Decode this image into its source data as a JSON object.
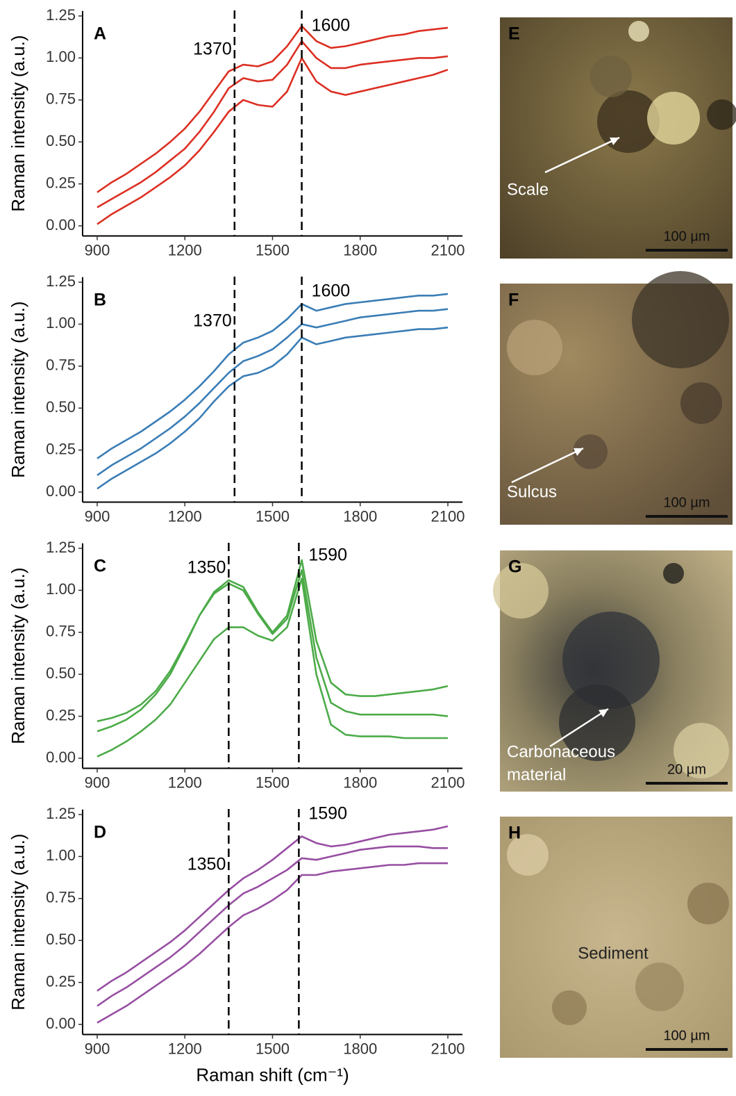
{
  "chart_data": [
    {
      "type": "line",
      "panel_label": "A",
      "ylabel": "Raman intensity (a.u.)",
      "x": [
        900,
        950,
        1000,
        1050,
        1100,
        1150,
        1200,
        1250,
        1300,
        1350,
        1400,
        1450,
        1500,
        1550,
        1600,
        1650,
        1700,
        1750,
        1800,
        1850,
        1900,
        1950,
        2000,
        2050,
        2100
      ],
      "series": [
        {
          "color": "#dc2f22",
          "values": [
            0.2,
            0.26,
            0.31,
            0.37,
            0.43,
            0.5,
            0.58,
            0.68,
            0.8,
            0.92,
            0.96,
            0.95,
            0.98,
            1.07,
            1.19,
            1.1,
            1.06,
            1.07,
            1.09,
            1.11,
            1.13,
            1.14,
            1.16,
            1.17,
            1.18
          ]
        },
        {
          "color": "#dc2f22",
          "values": [
            0.11,
            0.16,
            0.21,
            0.26,
            0.32,
            0.39,
            0.46,
            0.56,
            0.68,
            0.82,
            0.88,
            0.86,
            0.87,
            0.96,
            1.1,
            1.0,
            0.94,
            0.94,
            0.96,
            0.97,
            0.98,
            0.99,
            1.0,
            1.0,
            1.01
          ]
        },
        {
          "color": "#dc2f22",
          "values": [
            0.01,
            0.07,
            0.12,
            0.17,
            0.23,
            0.29,
            0.36,
            0.45,
            0.56,
            0.68,
            0.75,
            0.72,
            0.71,
            0.8,
            1.0,
            0.86,
            0.8,
            0.78,
            0.8,
            0.82,
            0.84,
            0.86,
            0.88,
            0.9,
            0.93
          ]
        }
      ],
      "vlines": [
        1370,
        1600
      ],
      "xlim": [
        850,
        2150
      ],
      "xticks": [
        900,
        1200,
        1500,
        1800,
        2100
      ],
      "ylim": [
        -0.06,
        1.28
      ],
      "yticks": [
        {
          "value": 0,
          "label": "0.00"
        },
        {
          "value": 0.25,
          "label": "0.25"
        },
        {
          "value": 0.5,
          "label": "0.50"
        },
        {
          "value": 0.75,
          "label": "0.75"
        },
        {
          "value": 1,
          "label": "1.00"
        },
        {
          "value": 1.25,
          "label": "1.25"
        }
      ]
    },
    {
      "type": "line",
      "panel_label": "B",
      "ylabel": "Raman intensity (a.u.)",
      "x": [
        900,
        950,
        1000,
        1050,
        1100,
        1150,
        1200,
        1250,
        1300,
        1350,
        1400,
        1450,
        1500,
        1550,
        1600,
        1650,
        1700,
        1750,
        1800,
        1850,
        1900,
        1950,
        2000,
        2050,
        2100
      ],
      "series": [
        {
          "color": "#3a7db6",
          "values": [
            0.2,
            0.26,
            0.31,
            0.36,
            0.42,
            0.48,
            0.55,
            0.63,
            0.72,
            0.82,
            0.89,
            0.92,
            0.96,
            1.03,
            1.12,
            1.08,
            1.1,
            1.12,
            1.13,
            1.14,
            1.15,
            1.16,
            1.17,
            1.17,
            1.18
          ]
        },
        {
          "color": "#3a7db6",
          "values": [
            0.1,
            0.16,
            0.21,
            0.26,
            0.32,
            0.38,
            0.45,
            0.53,
            0.62,
            0.71,
            0.78,
            0.81,
            0.85,
            0.92,
            1.0,
            0.98,
            1.0,
            1.02,
            1.04,
            1.05,
            1.06,
            1.07,
            1.08,
            1.08,
            1.09
          ]
        },
        {
          "color": "#3a7db6",
          "values": [
            0.02,
            0.08,
            0.13,
            0.18,
            0.23,
            0.29,
            0.36,
            0.44,
            0.54,
            0.63,
            0.69,
            0.71,
            0.75,
            0.82,
            0.92,
            0.88,
            0.9,
            0.92,
            0.93,
            0.94,
            0.95,
            0.96,
            0.97,
            0.97,
            0.98
          ]
        }
      ],
      "vlines": [
        1370,
        1600
      ],
      "xlim": [
        850,
        2150
      ],
      "xticks": [
        900,
        1200,
        1500,
        1800,
        2100
      ],
      "ylim": [
        -0.06,
        1.28
      ],
      "yticks": [
        {
          "value": 0,
          "label": "0.00"
        },
        {
          "value": 0.25,
          "label": "0.25"
        },
        {
          "value": 0.5,
          "label": "0.50"
        },
        {
          "value": 0.75,
          "label": "0.75"
        },
        {
          "value": 1,
          "label": "1.00"
        },
        {
          "value": 1.25,
          "label": "1.25"
        }
      ]
    },
    {
      "type": "line",
      "panel_label": "C",
      "ylabel": "Raman intensity (a.u.)",
      "x": [
        900,
        950,
        1000,
        1050,
        1100,
        1150,
        1200,
        1250,
        1300,
        1350,
        1400,
        1450,
        1500,
        1550,
        1600,
        1650,
        1700,
        1750,
        1800,
        1850,
        1900,
        1950,
        2000,
        2050,
        2100
      ],
      "series": [
        {
          "color": "#4cab48",
          "values": [
            0.22,
            0.24,
            0.27,
            0.32,
            0.4,
            0.52,
            0.68,
            0.85,
            0.99,
            1.06,
            1.02,
            0.87,
            0.75,
            0.85,
            1.18,
            0.7,
            0.45,
            0.38,
            0.37,
            0.37,
            0.38,
            0.39,
            0.4,
            0.41,
            0.43
          ]
        },
        {
          "color": "#4cab48",
          "values": [
            0.16,
            0.19,
            0.23,
            0.29,
            0.38,
            0.5,
            0.67,
            0.85,
            0.98,
            1.04,
            1.0,
            0.86,
            0.74,
            0.83,
            1.12,
            0.6,
            0.33,
            0.28,
            0.26,
            0.26,
            0.26,
            0.26,
            0.26,
            0.26,
            0.25
          ]
        },
        {
          "color": "#4cab48",
          "values": [
            0.01,
            0.05,
            0.1,
            0.16,
            0.23,
            0.32,
            0.45,
            0.58,
            0.71,
            0.78,
            0.78,
            0.73,
            0.7,
            0.78,
            1.07,
            0.5,
            0.2,
            0.14,
            0.13,
            0.13,
            0.13,
            0.12,
            0.12,
            0.12,
            0.12
          ]
        }
      ],
      "vlines": [
        1350,
        1590
      ],
      "xlim": [
        850,
        2150
      ],
      "xticks": [
        900,
        1200,
        1500,
        1800,
        2100
      ],
      "ylim": [
        -0.06,
        1.28
      ],
      "yticks": [
        {
          "value": 0,
          "label": "0.00"
        },
        {
          "value": 0.25,
          "label": "0.25"
        },
        {
          "value": 0.5,
          "label": "0.50"
        },
        {
          "value": 0.75,
          "label": "0.75"
        },
        {
          "value": 1,
          "label": "1.00"
        },
        {
          "value": 1.25,
          "label": "1.25"
        }
      ]
    },
    {
      "type": "line",
      "panel_label": "D",
      "ylabel": "Raman intensity (a.u.)",
      "xlabel": "Raman shift (cm⁻¹)",
      "x": [
        900,
        950,
        1000,
        1050,
        1100,
        1150,
        1200,
        1250,
        1300,
        1350,
        1400,
        1450,
        1500,
        1550,
        1600,
        1650,
        1700,
        1750,
        1800,
        1850,
        1900,
        1950,
        2000,
        2050,
        2100
      ],
      "series": [
        {
          "color": "#974ea2",
          "values": [
            0.2,
            0.26,
            0.31,
            0.37,
            0.43,
            0.49,
            0.56,
            0.64,
            0.72,
            0.8,
            0.87,
            0.92,
            0.98,
            1.05,
            1.12,
            1.08,
            1.06,
            1.07,
            1.09,
            1.11,
            1.13,
            1.14,
            1.15,
            1.16,
            1.18
          ]
        },
        {
          "color": "#974ea2",
          "values": [
            0.11,
            0.17,
            0.22,
            0.28,
            0.34,
            0.4,
            0.47,
            0.55,
            0.63,
            0.71,
            0.78,
            0.82,
            0.87,
            0.92,
            0.99,
            0.98,
            1.0,
            1.02,
            1.04,
            1.05,
            1.06,
            1.06,
            1.06,
            1.05,
            1.05
          ]
        },
        {
          "color": "#974ea2",
          "values": [
            0.01,
            0.06,
            0.11,
            0.17,
            0.23,
            0.29,
            0.35,
            0.42,
            0.5,
            0.58,
            0.65,
            0.69,
            0.74,
            0.8,
            0.89,
            0.89,
            0.91,
            0.92,
            0.93,
            0.94,
            0.95,
            0.95,
            0.96,
            0.96,
            0.96
          ]
        }
      ],
      "vlines": [
        1350,
        1590
      ],
      "xlim": [
        850,
        2150
      ],
      "xticks": [
        900,
        1200,
        1500,
        1800,
        2100
      ],
      "ylim": [
        -0.06,
        1.28
      ],
      "yticks": [
        {
          "value": 0,
          "label": "0.00"
        },
        {
          "value": 0.25,
          "label": "0.25"
        },
        {
          "value": 0.5,
          "label": "0.50"
        },
        {
          "value": 0.75,
          "label": "0.75"
        },
        {
          "value": 1,
          "label": "1.00"
        },
        {
          "value": 1.25,
          "label": "1.25"
        }
      ]
    }
  ],
  "micrographs": [
    {
      "label": "E",
      "annotation": [
        "Scale"
      ],
      "scale_bar": "100 µm"
    },
    {
      "label": "F",
      "annotation": [
        "Sulcus"
      ],
      "scale_bar": "100 µm"
    },
    {
      "label": "G",
      "annotation": [
        "Carbonaceous",
        "material"
      ],
      "scale_bar": "20 µm"
    },
    {
      "label": "H",
      "annotation": [
        "Sediment"
      ],
      "scale_bar": "100 µm"
    }
  ]
}
